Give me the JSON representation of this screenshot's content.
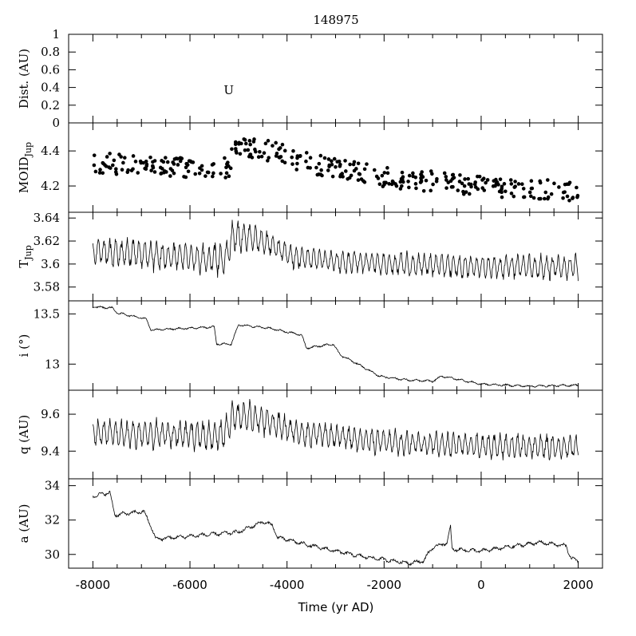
{
  "chart_data": {
    "type": "line",
    "title": "148975",
    "xlabel": "Time (yr AD)",
    "xlim": [
      -8500,
      2500
    ],
    "xticks": [
      "-8000",
      "-6000",
      "-4000",
      "-2000",
      "0",
      "2000"
    ],
    "panels": [
      {
        "key": "dist",
        "ylabel": "Dist. (AU)",
        "ylim": [
          0,
          1
        ],
        "yticks": [
          "0",
          "0.2",
          "0.4",
          "0.6",
          "0.8",
          "1"
        ],
        "style": "text-markers",
        "markers": [
          {
            "x": -5200,
            "y": 0.37,
            "text": "U"
          }
        ]
      },
      {
        "key": "moid",
        "ylabel": "MOID",
        "ylabel_sub": "Jup",
        "ylim": [
          4.05,
          4.56
        ],
        "yticks": [
          "4.2",
          "4.4"
        ],
        "style": "dots",
        "trend": [
          [
            -8000,
            4.33
          ],
          [
            -5200,
            4.3
          ],
          [
            -5100,
            4.43
          ],
          [
            -4400,
            4.4
          ],
          [
            -3500,
            4.33
          ],
          [
            -2000,
            4.25
          ],
          [
            0,
            4.2
          ],
          [
            2000,
            4.17
          ]
        ],
        "spread": 0.12,
        "count": 360
      },
      {
        "key": "tjup",
        "ylabel": "T",
        "ylabel_sub": "Jup",
        "ylim": [
          3.568,
          3.645
        ],
        "yticks": [
          "3.58",
          "3.6",
          "3.62",
          "3.64"
        ],
        "style": "osc-line",
        "trend": [
          [
            -8000,
            3.611
          ],
          [
            -5300,
            3.604
          ],
          [
            -5100,
            3.625
          ],
          [
            -4500,
            3.62
          ],
          [
            -3800,
            3.605
          ],
          [
            -2000,
            3.6
          ],
          [
            0,
            3.598
          ],
          [
            2000,
            3.597
          ]
        ],
        "amp": [
          [
            -8000,
            0.012
          ],
          [
            -5100,
            0.014
          ],
          [
            -4000,
            0.01
          ],
          [
            2000,
            0.011
          ]
        ],
        "period": 120
      },
      {
        "key": "inc",
        "ylabel": "i (°)",
        "ylim": [
          12.74,
          13.63
        ],
        "yticks": [
          "13",
          "13.5"
        ],
        "style": "line",
        "trend": [
          [
            -8000,
            13.57
          ],
          [
            -7600,
            13.56
          ],
          [
            -7500,
            13.51
          ],
          [
            -6900,
            13.45
          ],
          [
            -6800,
            13.34
          ],
          [
            -5500,
            13.37
          ],
          [
            -5450,
            13.2
          ],
          [
            -5150,
            13.2
          ],
          [
            -5000,
            13.39
          ],
          [
            -4400,
            13.36
          ],
          [
            -3700,
            13.29
          ],
          [
            -3600,
            13.16
          ],
          [
            -3050,
            13.2
          ],
          [
            -2900,
            13.09
          ],
          [
            -2500,
            12.99
          ],
          [
            -2100,
            12.88
          ],
          [
            -1500,
            12.84
          ],
          [
            -1000,
            12.83
          ],
          [
            -800,
            12.88
          ],
          [
            -400,
            12.84
          ],
          [
            0,
            12.8
          ],
          [
            1000,
            12.78
          ],
          [
            2000,
            12.79
          ]
        ],
        "noise": 0.012
      },
      {
        "key": "q",
        "ylabel": "q (AU)",
        "ylim": [
          9.25,
          9.73
        ],
        "yticks": [
          "9.4",
          "9.6"
        ],
        "style": "osc-line",
        "trend": [
          [
            -8000,
            9.5
          ],
          [
            -5300,
            9.48
          ],
          [
            -5100,
            9.59
          ],
          [
            -4500,
            9.57
          ],
          [
            -3800,
            9.5
          ],
          [
            -2000,
            9.45
          ],
          [
            0,
            9.43
          ],
          [
            2000,
            9.42
          ]
        ],
        "amp": [
          [
            -8000,
            0.075
          ],
          [
            -5100,
            0.09
          ],
          [
            -4000,
            0.07
          ],
          [
            2000,
            0.07
          ]
        ],
        "period": 120
      },
      {
        "key": "a",
        "ylabel": "a (AU)",
        "ylim": [
          29.2,
          34.4
        ],
        "yticks": [
          "30",
          "32",
          "34"
        ],
        "style": "line",
        "trend": [
          [
            -8000,
            33.4
          ],
          [
            -7650,
            33.6
          ],
          [
            -7550,
            32.3
          ],
          [
            -6950,
            32.5
          ],
          [
            -6800,
            31.6
          ],
          [
            -6700,
            30.9
          ],
          [
            -5000,
            31.3
          ],
          [
            -4500,
            31.9
          ],
          [
            -4300,
            31.7
          ],
          [
            -4200,
            31.0
          ],
          [
            -3500,
            30.5
          ],
          [
            -2500,
            29.9
          ],
          [
            -1500,
            29.5
          ],
          [
            -1200,
            29.6
          ],
          [
            -1000,
            30.4
          ],
          [
            -700,
            30.7
          ],
          [
            -630,
            31.6
          ],
          [
            -600,
            30.3
          ],
          [
            0,
            30.2
          ],
          [
            1200,
            30.7
          ],
          [
            1750,
            30.5
          ],
          [
            1850,
            29.8
          ],
          [
            2000,
            29.6
          ]
        ],
        "noise": 0.13
      }
    ]
  }
}
